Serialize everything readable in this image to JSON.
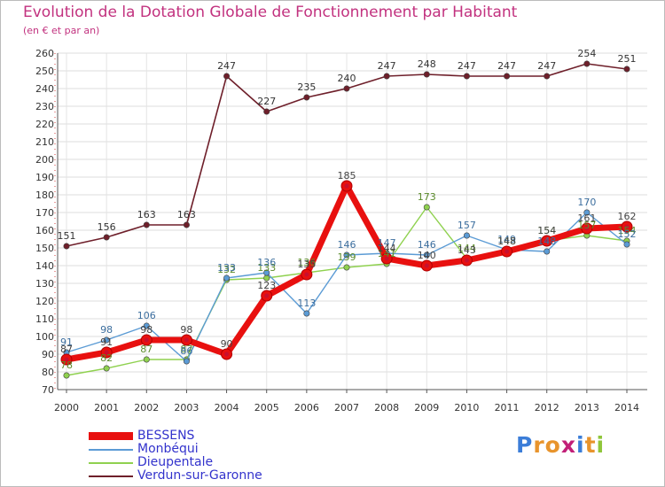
{
  "title": "Evolution de la Dotation Globale de Fonctionnement par Habitant",
  "subtitle": "(en € et par an)",
  "logo": [
    "P",
    "r",
    "o",
    "x",
    "i",
    "t",
    "i"
  ],
  "logo_colors": [
    "#3b7dd8",
    "#e8942c",
    "#e8942c",
    "#c21f78",
    "#3b7dd8",
    "#e8942c",
    "#8fc63a"
  ],
  "chart_data": {
    "type": "line",
    "x": [
      "2000",
      "2001",
      "2002",
      "2003",
      "2004",
      "2005",
      "2006",
      "2007",
      "2008",
      "2009",
      "2010",
      "2011",
      "2012",
      "2013",
      "2014"
    ],
    "ylim": [
      70,
      260
    ],
    "yticks": [
      70,
      80,
      90,
      100,
      110,
      120,
      130,
      140,
      150,
      160,
      170,
      180,
      190,
      200,
      210,
      220,
      230,
      240,
      250,
      260
    ],
    "grid": true,
    "legend_position": "bottom-left",
    "series": [
      {
        "name": "Verdun-sur-Garonne",
        "color": "#6e1f2a",
        "values": [
          151,
          156,
          163,
          163,
          247,
          227,
          235,
          240,
          247,
          248,
          247,
          247,
          247,
          254,
          251
        ]
      },
      {
        "name": "Dieupentale",
        "color": "#8fd14f",
        "values": [
          78,
          82,
          87,
          87,
          132,
          133,
          136,
          139,
          141,
          173,
          144,
          148,
          154,
          157,
          154
        ]
      },
      {
        "name": "Monbéqui",
        "color": "#5b9bd5",
        "values": [
          91,
          98,
          106,
          86,
          133,
          136,
          113,
          146,
          147,
          146,
          157,
          149,
          148,
          170,
          152
        ]
      },
      {
        "name": "BESSENS",
        "color": "#e8100f",
        "values": [
          87,
          91,
          98,
          98,
          90,
          123,
          135,
          185,
          144,
          140,
          143,
          148,
          154,
          161,
          162
        ]
      }
    ]
  }
}
